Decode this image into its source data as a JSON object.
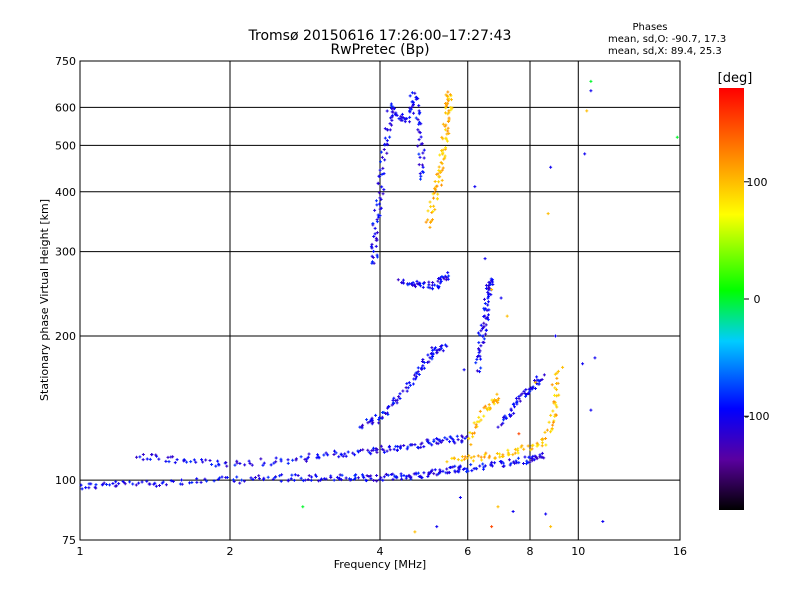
{
  "header": {
    "title": "Tromsø 20150616 17:26:00–17:27:43",
    "subtitle": "RwPretec (Bp)"
  },
  "stats": {
    "heading": "Phases",
    "o_line": "mean, sd,O: -90.7, 17.3",
    "x_line": "mean, sd,X:  89.4, 25.3"
  },
  "colorbar": {
    "label": "[deg]",
    "ticks": [
      "100",
      "0",
      "-100"
    ],
    "tick_values": [
      100,
      0,
      -100
    ],
    "range": [
      -180,
      180
    ]
  },
  "chart_data": {
    "type": "scatter",
    "title": "Tromsø 20150616 17:26:00–17:27:43",
    "subtitle": "RwPretec (Bp)",
    "xlabel": "Frequency [MHz]",
    "ylabel": "Stationary phase Virtual Height [km]",
    "xscale": "log",
    "yscale": "log",
    "xlim": [
      1,
      16
    ],
    "ylim": [
      75,
      750
    ],
    "xticks": [
      1,
      2,
      4,
      6,
      8,
      10,
      16
    ],
    "xtick_labels": [
      "1",
      "2",
      "4",
      "6",
      "8",
      "10",
      "16"
    ],
    "yticks": [
      75,
      100,
      200,
      300,
      400,
      500,
      600,
      750
    ],
    "ytick_labels": [
      "75",
      "100",
      "200",
      "300",
      "400",
      "500",
      "600",
      "750"
    ],
    "grid": true,
    "color_encoding": "phase [deg]",
    "traces": [
      {
        "points": [
          [
            1.0,
            97
          ],
          [
            1.2,
            98
          ],
          [
            1.5,
            99
          ],
          [
            2.0,
            100
          ],
          [
            2.5,
            101
          ],
          [
            3.0,
            101
          ],
          [
            3.5,
            101
          ],
          [
            4.0,
            101
          ],
          [
            4.5,
            102
          ],
          [
            5.0,
            103
          ],
          [
            5.5,
            105
          ],
          [
            6.0,
            106
          ],
          [
            7.0,
            108
          ],
          [
            8.0,
            110
          ],
          [
            8.5,
            113
          ]
        ],
        "phase": -100
      },
      {
        "points": [
          [
            1.3,
            112
          ],
          [
            1.6,
            110
          ],
          [
            2.0,
            108
          ],
          [
            2.6,
            110
          ],
          [
            3.2,
            113
          ],
          [
            3.8,
            115
          ],
          [
            4.3,
            117
          ],
          [
            4.9,
            119
          ],
          [
            5.4,
            121
          ],
          [
            6.0,
            122
          ]
        ],
        "phase": -100
      },
      {
        "points": [
          [
            3.7,
            130
          ],
          [
            4.0,
            135
          ],
          [
            4.4,
            150
          ],
          [
            4.8,
            170
          ],
          [
            5.1,
            185
          ],
          [
            5.4,
            190
          ]
        ],
        "phase": -100
      },
      {
        "points": [
          [
            3.9,
            280
          ],
          [
            3.9,
            330
          ],
          [
            4.0,
            400
          ],
          [
            4.1,
            500
          ],
          [
            4.2,
            600
          ],
          [
            4.5,
            560
          ],
          [
            4.7,
            640
          ],
          [
            4.8,
            520
          ],
          [
            4.9,
            420
          ]
        ],
        "phase": -100
      },
      {
        "points": [
          [
            4.4,
            260
          ],
          [
            4.8,
            255
          ],
          [
            5.2,
            255
          ],
          [
            5.5,
            270
          ]
        ],
        "phase": -100
      },
      {
        "points": [
          [
            5.0,
            340
          ],
          [
            5.2,
            400
          ],
          [
            5.3,
            450
          ],
          [
            5.4,
            520
          ],
          [
            5.5,
            600
          ],
          [
            5.5,
            650
          ]
        ],
        "phase": 100
      },
      {
        "points": [
          [
            5.5,
            110
          ],
          [
            6.5,
            112
          ],
          [
            7.5,
            115
          ],
          [
            8.5,
            120
          ],
          [
            9.0,
            140
          ],
          [
            9.0,
            170
          ]
        ],
        "phase": 100
      },
      {
        "points": [
          [
            6.3,
            170
          ],
          [
            6.4,
            200
          ],
          [
            6.5,
            220
          ],
          [
            6.6,
            250
          ],
          [
            6.7,
            260
          ]
        ],
        "phase": -100
      },
      {
        "points": [
          [
            7.0,
            130
          ],
          [
            7.5,
            145
          ],
          [
            8.0,
            155
          ],
          [
            8.5,
            165
          ]
        ],
        "phase": -100
      },
      {
        "points": [
          [
            6.0,
            120
          ],
          [
            6.5,
            140
          ],
          [
            7.0,
            150
          ]
        ],
        "phase": 100
      }
    ],
    "sparse_points": [
      {
        "x": 10.4,
        "y": 590,
        "phase": 100
      },
      {
        "x": 10.6,
        "y": 650,
        "phase": -100
      },
      {
        "x": 10.6,
        "y": 680,
        "phase": 0
      },
      {
        "x": 10.3,
        "y": 480,
        "phase": -100
      },
      {
        "x": 8.8,
        "y": 450,
        "phase": -100
      },
      {
        "x": 8.7,
        "y": 360,
        "phase": 100
      },
      {
        "x": 15.8,
        "y": 520,
        "phase": 0
      },
      {
        "x": 6.2,
        "y": 410,
        "phase": -100
      },
      {
        "x": 6.5,
        "y": 290,
        "phase": -100
      },
      {
        "x": 6.7,
        "y": 250,
        "phase": 100
      },
      {
        "x": 7.0,
        "y": 240,
        "phase": -100
      },
      {
        "x": 7.2,
        "y": 220,
        "phase": 100
      },
      {
        "x": 9.0,
        "y": 200,
        "phase": -100
      },
      {
        "x": 10.2,
        "y": 175,
        "phase": -100
      },
      {
        "x": 10.8,
        "y": 180,
        "phase": -100
      },
      {
        "x": 10.6,
        "y": 140,
        "phase": -100
      },
      {
        "x": 11.2,
        "y": 82,
        "phase": -100
      },
      {
        "x": 2.8,
        "y": 88,
        "phase": 0
      },
      {
        "x": 4.7,
        "y": 78,
        "phase": 100
      },
      {
        "x": 5.2,
        "y": 80,
        "phase": -100
      },
      {
        "x": 6.7,
        "y": 80,
        "phase": 150
      },
      {
        "x": 8.6,
        "y": 85,
        "phase": -100
      },
      {
        "x": 8.8,
        "y": 80,
        "phase": 100
      },
      {
        "x": 5.8,
        "y": 92,
        "phase": -100
      },
      {
        "x": 6.9,
        "y": 88,
        "phase": 100
      },
      {
        "x": 7.4,
        "y": 86,
        "phase": -100
      },
      {
        "x": 9.3,
        "y": 172,
        "phase": 100
      },
      {
        "x": 8.2,
        "y": 160,
        "phase": 100
      },
      {
        "x": 5.9,
        "y": 170,
        "phase": -100
      },
      {
        "x": 7.6,
        "y": 125,
        "phase": 150
      }
    ]
  }
}
